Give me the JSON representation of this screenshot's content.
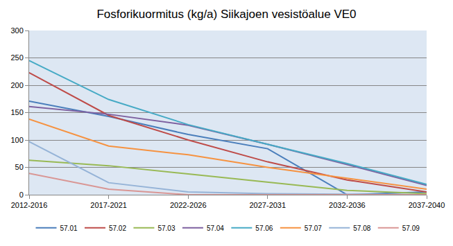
{
  "chart_data": {
    "type": "line",
    "title": "Fosforikuormitus (kg/a) Siikajoen vesistöalue VE0",
    "categories": [
      "2012-2016",
      "2017-2021",
      "2022-2026",
      "2027-2031",
      "2032-2036",
      "2037-2040"
    ],
    "series": [
      {
        "name": "57.01",
        "color": "#4a7ebb",
        "values": [
          171,
          143,
          110,
          84,
          0,
          5
        ]
      },
      {
        "name": "57.02",
        "color": "#be4b48",
        "values": [
          223,
          145,
          100,
          60,
          27,
          5
        ]
      },
      {
        "name": "57.03",
        "color": "#98b954",
        "values": [
          63,
          53,
          38,
          23,
          8,
          2
        ]
      },
      {
        "name": "57.04",
        "color": "#7d60a0",
        "values": [
          161,
          147,
          127,
          92,
          55,
          17
        ]
      },
      {
        "name": "57.06",
        "color": "#46aac5",
        "values": [
          245,
          174,
          128,
          92,
          57,
          19
        ]
      },
      {
        "name": "57.07",
        "color": "#f69240",
        "values": [
          138,
          89,
          73,
          50,
          30,
          10
        ]
      },
      {
        "name": "57.08",
        "color": "#95b3d7",
        "values": [
          97,
          22,
          5,
          2,
          1,
          0
        ]
      },
      {
        "name": "57.09",
        "color": "#d99694",
        "values": [
          39,
          10,
          0,
          0,
          0,
          0
        ]
      }
    ],
    "ylim": [
      0,
      300
    ],
    "yticks": [
      0,
      50,
      100,
      150,
      200,
      250,
      300
    ],
    "grid": true,
    "legend": "bottom"
  }
}
